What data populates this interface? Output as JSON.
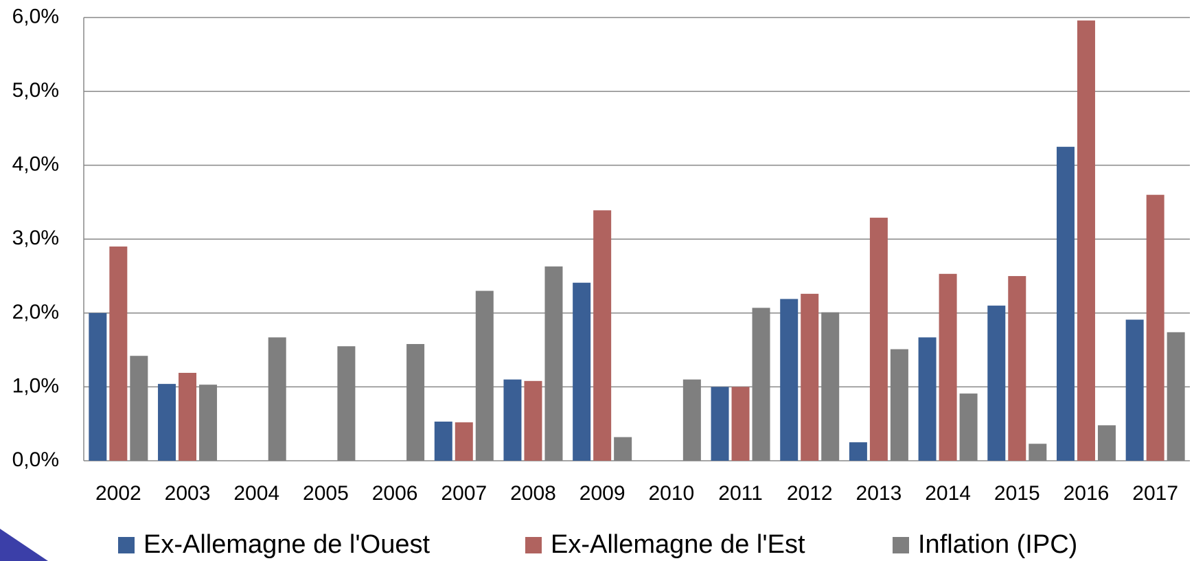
{
  "chart_data": {
    "type": "bar",
    "categories": [
      "2002",
      "2003",
      "2004",
      "2005",
      "2006",
      "2007",
      "2008",
      "2009",
      "2010",
      "2011",
      "2012",
      "2013",
      "2014",
      "2015",
      "2016",
      "2017"
    ],
    "series": [
      {
        "name": "Ex-Allemagne de l'Ouest",
        "color": "#3a5f95",
        "values": [
          2.0,
          1.04,
          null,
          null,
          null,
          0.53,
          1.1,
          2.41,
          null,
          1.0,
          2.19,
          0.25,
          1.67,
          2.1,
          4.25,
          1.91
        ]
      },
      {
        "name": "Ex-Allemagne de l'Est",
        "color": "#b0635f",
        "values": [
          2.9,
          1.19,
          null,
          null,
          null,
          0.52,
          1.08,
          3.39,
          null,
          1.0,
          2.26,
          3.29,
          2.53,
          2.5,
          5.96,
          3.6
        ]
      },
      {
        "name": "Inflation (IPC)",
        "color": "#7f7f7f",
        "values": [
          1.42,
          1.03,
          1.67,
          1.55,
          1.58,
          2.3,
          2.63,
          0.32,
          1.1,
          2.07,
          2.01,
          1.51,
          0.91,
          0.23,
          0.48,
          1.74
        ]
      }
    ],
    "ylim": [
      0,
      6
    ],
    "yticks": [
      {
        "value": 0,
        "label": "0,0%"
      },
      {
        "value": 1,
        "label": "1,0%"
      },
      {
        "value": 2,
        "label": "2,0%"
      },
      {
        "value": 3,
        "label": "3,0%"
      },
      {
        "value": 4,
        "label": "4,0%"
      },
      {
        "value": 5,
        "label": "5,0%"
      },
      {
        "value": 6,
        "label": "6,0%"
      }
    ],
    "grid": true,
    "legend": "bottom"
  }
}
